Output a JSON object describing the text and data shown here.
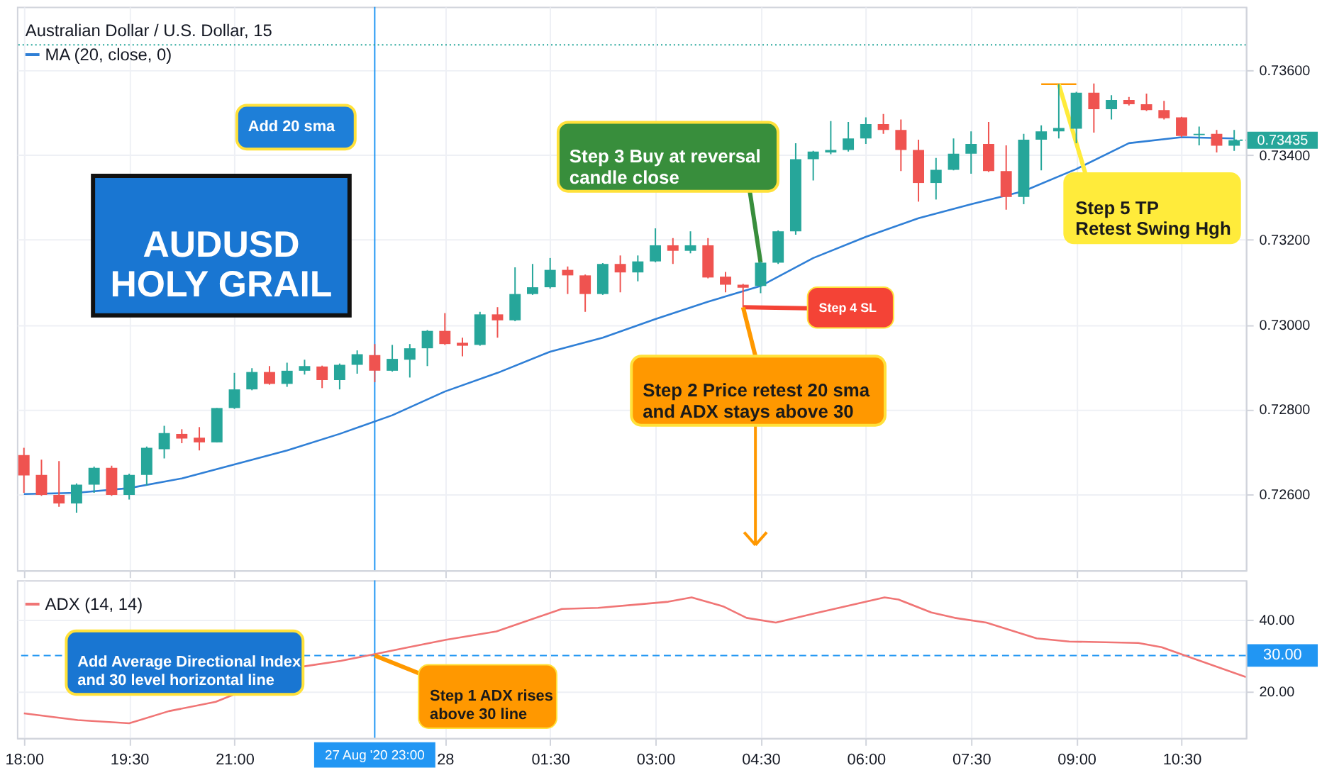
{
  "chart_data": [
    {
      "type": "candlestick",
      "title": "Australian Dollar / U.S. Dollar, 15",
      "legend": "top left",
      "grid": true,
      "tick_labels": "y",
      "x": [
        "2020-08-27T18:00",
        "2020-08-27T18:15",
        "2020-08-27T18:30",
        "2020-08-27T18:45",
        "2020-08-27T19:00",
        "2020-08-27T19:15",
        "2020-08-27T19:30",
        "2020-08-27T19:45",
        "2020-08-27T20:00",
        "2020-08-27T20:15",
        "2020-08-27T20:30",
        "2020-08-27T20:45",
        "2020-08-27T21:00",
        "2020-08-27T21:15",
        "2020-08-27T21:30",
        "2020-08-27T21:45",
        "2020-08-27T22:00",
        "2020-08-27T22:15",
        "2020-08-27T22:30",
        "2020-08-27T22:45",
        "2020-08-27T23:00",
        "2020-08-27T23:15",
        "2020-08-27T23:30",
        "2020-08-27T23:45",
        "2020-08-28T00:00",
        "2020-08-28T00:15",
        "2020-08-28T00:30",
        "2020-08-28T00:45",
        "2020-08-28T01:00",
        "2020-08-28T01:15",
        "2020-08-28T01:30",
        "2020-08-28T01:45",
        "2020-08-28T02:00",
        "2020-08-28T02:15",
        "2020-08-28T02:30",
        "2020-08-28T02:45",
        "2020-08-28T03:00",
        "2020-08-28T03:15",
        "2020-08-28T03:30",
        "2020-08-28T03:45",
        "2020-08-28T04:00",
        "2020-08-28T04:15",
        "2020-08-28T04:30",
        "2020-08-28T04:45",
        "2020-08-28T05:00",
        "2020-08-28T05:15",
        "2020-08-28T05:30",
        "2020-08-28T05:45",
        "2020-08-28T06:00",
        "2020-08-28T06:15",
        "2020-08-28T06:30",
        "2020-08-28T06:45",
        "2020-08-28T07:00",
        "2020-08-28T07:15",
        "2020-08-28T07:30",
        "2020-08-28T07:45",
        "2020-08-28T08:00",
        "2020-08-28T08:15",
        "2020-08-28T08:30",
        "2020-08-28T08:45",
        "2020-08-28T09:00",
        "2020-08-28T09:15",
        "2020-08-28T09:30",
        "2020-08-28T09:45",
        "2020-08-28T10:00",
        "2020-08-28T10:15",
        "2020-08-28T10:30",
        "2020-08-28T10:45",
        "2020-08-28T11:00",
        "2020-08-28T11:15"
      ],
      "ohlc": [
        [
          0.72692,
          0.72709,
          0.72603,
          0.72644
        ],
        [
          0.72645,
          0.72681,
          0.72596,
          0.72598
        ],
        [
          0.72598,
          0.72678,
          0.7257,
          0.72578
        ],
        [
          0.72578,
          0.72625,
          0.72556,
          0.72622
        ],
        [
          0.72622,
          0.72665,
          0.72603,
          0.72662
        ],
        [
          0.72662,
          0.72667,
          0.72596,
          0.72598
        ],
        [
          0.72598,
          0.72648,
          0.72587,
          0.72645
        ],
        [
          0.72645,
          0.72712,
          0.7262,
          0.72709
        ],
        [
          0.72706,
          0.72761,
          0.72684,
          0.72744
        ],
        [
          0.72742,
          0.72753,
          0.7272,
          0.72731
        ],
        [
          0.72733,
          0.72758,
          0.72703,
          0.72722
        ],
        [
          0.72722,
          0.72803,
          0.72722,
          0.72803
        ],
        [
          0.72803,
          0.72886,
          0.72801,
          0.72847
        ],
        [
          0.72847,
          0.72897,
          0.72845,
          0.72888
        ],
        [
          0.72888,
          0.72902,
          0.72858,
          0.7286
        ],
        [
          0.7286,
          0.7291,
          0.72853,
          0.72891
        ],
        [
          0.72891,
          0.72917,
          0.72882,
          0.72902
        ],
        [
          0.72901,
          0.72903,
          0.7285,
          0.72869
        ],
        [
          0.72869,
          0.72908,
          0.72847,
          0.72905
        ],
        [
          0.72905,
          0.72939,
          0.72884,
          0.7293
        ],
        [
          0.72928,
          0.72954,
          0.72864,
          0.72891
        ],
        [
          0.72891,
          0.72952,
          0.72889,
          0.72919
        ],
        [
          0.72917,
          0.72954,
          0.72875,
          0.72944
        ],
        [
          0.72944,
          0.72987,
          0.72902,
          0.72985
        ],
        [
          0.72985,
          0.73027,
          0.72952,
          0.72954
        ],
        [
          0.72957,
          0.72969,
          0.72925,
          0.7295
        ],
        [
          0.72952,
          0.7303,
          0.7295,
          0.73024
        ],
        [
          0.73024,
          0.73041,
          0.72969,
          0.7301
        ],
        [
          0.7301,
          0.73135,
          0.73008,
          0.73072
        ],
        [
          0.73072,
          0.73143,
          0.7307,
          0.73088
        ],
        [
          0.73088,
          0.73157,
          0.73085,
          0.73129
        ],
        [
          0.73129,
          0.73137,
          0.73072,
          0.73116
        ],
        [
          0.73116,
          0.73118,
          0.7303,
          0.73072
        ],
        [
          0.73072,
          0.73145,
          0.7307,
          0.73143
        ],
        [
          0.73143,
          0.73163,
          0.73076,
          0.73123
        ],
        [
          0.73123,
          0.73163,
          0.73102,
          0.73149
        ],
        [
          0.73149,
          0.73227,
          0.73147,
          0.73187
        ],
        [
          0.73187,
          0.73204,
          0.73143,
          0.73174
        ],
        [
          0.73174,
          0.7322,
          0.73168,
          0.73187
        ],
        [
          0.73187,
          0.73204,
          0.73109,
          0.73111
        ],
        [
          0.73113,
          0.73124,
          0.73076,
          0.73094
        ],
        [
          0.73094,
          0.73096,
          0.73041,
          0.73087
        ],
        [
          0.73091,
          0.73149,
          0.73074,
          0.73146
        ],
        [
          0.73146,
          0.73222,
          0.73143,
          0.7322
        ],
        [
          0.7322,
          0.73428,
          0.73212,
          0.7339
        ],
        [
          0.7339,
          0.7341,
          0.7334,
          0.73408
        ],
        [
          0.73406,
          0.7348,
          0.73402,
          0.73412
        ],
        [
          0.73412,
          0.73478,
          0.73408,
          0.73439
        ],
        [
          0.73439,
          0.73489,
          0.73426,
          0.73473
        ],
        [
          0.73473,
          0.73497,
          0.7345,
          0.73459
        ],
        [
          0.73459,
          0.73484,
          0.73362,
          0.73412
        ],
        [
          0.73412,
          0.73436,
          0.7329,
          0.73334
        ],
        [
          0.73334,
          0.73393,
          0.73295,
          0.73365
        ],
        [
          0.73365,
          0.73439,
          0.73364,
          0.73403
        ],
        [
          0.73403,
          0.73456,
          0.73356,
          0.73426
        ],
        [
          0.73426,
          0.73478,
          0.7336,
          0.73362
        ],
        [
          0.73362,
          0.73423,
          0.73271,
          0.73301
        ],
        [
          0.73301,
          0.7345,
          0.73284,
          0.73436
        ],
        [
          0.73436,
          0.7347,
          0.73364,
          0.73456
        ],
        [
          0.73456,
          0.73567,
          0.73439,
          0.73464
        ],
        [
          0.73462,
          0.73549,
          0.73428,
          0.73547
        ],
        [
          0.73547,
          0.73569,
          0.73453,
          0.73508
        ],
        [
          0.73508,
          0.73541,
          0.73484,
          0.7353
        ],
        [
          0.7353,
          0.73537,
          0.73517,
          0.7352
        ],
        [
          0.7352,
          0.73545,
          0.73504,
          0.73506
        ],
        [
          0.73506,
          0.73528,
          0.73484,
          0.73487
        ],
        [
          0.73489,
          0.7349,
          0.73442,
          0.73445
        ],
        [
          0.73447,
          0.73467,
          0.73423,
          0.7345
        ],
        [
          0.7345,
          0.73459,
          0.73406,
          0.73422
        ],
        [
          0.73422,
          0.73459,
          0.7341,
          0.73435
        ]
      ],
      "series": [
        {
          "name": "MA (20, close, 0)",
          "type": "line",
          "color": "#2f7fd6",
          "x": [
            "2020-08-27T18:00",
            "2020-08-27T18:45",
            "2020-08-27T19:30",
            "2020-08-27T20:15",
            "2020-08-27T21:00",
            "2020-08-27T21:45",
            "2020-08-27T22:30",
            "2020-08-27T23:15",
            "2020-08-28T00:00",
            "2020-08-28T00:45",
            "2020-08-28T01:30",
            "2020-08-28T02:15",
            "2020-08-28T03:00",
            "2020-08-28T03:45",
            "2020-08-28T04:30",
            "2020-08-28T05:15",
            "2020-08-28T06:00",
            "2020-08-28T06:45",
            "2020-08-28T07:30",
            "2020-08-28T08:15",
            "2020-08-28T09:00",
            "2020-08-28T09:45",
            "2020-08-28T10:30",
            "2020-08-28T11:15"
          ],
          "values": [
            0.726,
            0.72603,
            0.72614,
            0.72637,
            0.7267,
            0.72703,
            0.72742,
            0.72786,
            0.72842,
            0.72886,
            0.72936,
            0.72969,
            0.73013,
            0.73054,
            0.73091,
            0.73157,
            0.73207,
            0.73251,
            0.73284,
            0.73315,
            0.73367,
            0.73428,
            0.73442,
            0.73439
          ]
        },
        {
          "type": "line",
          "color": "#ff9800",
          "x": [
            "2020-08-28T08:30",
            "2020-08-28T09:00"
          ],
          "values": [
            0.73567,
            0.73567
          ]
        }
      ],
      "xlim": [
        "2020-08-27T17:54",
        "2020-08-28T11:25"
      ],
      "xticks": [
        {
          "value": "2020-08-27T18:00",
          "label": null
        },
        {
          "value": "2020-08-27T19:30",
          "label": null
        },
        {
          "value": "2020-08-27T21:00",
          "label": null
        },
        {
          "value": "2020-08-28T00:00",
          "label": null
        },
        {
          "value": "2020-08-28T01:30",
          "label": null
        },
        {
          "value": "2020-08-28T03:00",
          "label": null
        },
        {
          "value": "2020-08-28T04:30",
          "label": null
        },
        {
          "value": "2020-08-28T06:00",
          "label": null
        },
        {
          "value": "2020-08-28T07:30",
          "label": null
        },
        {
          "value": "2020-08-28T09:00",
          "label": null
        },
        {
          "value": "2020-08-28T10:30",
          "label": null
        }
      ],
      "ylim": [
        0.7242,
        0.7375
      ],
      "yticks": [
        {
          "value": 0.726,
          "label": "0.72600"
        },
        {
          "value": 0.728,
          "label": "0.72800"
        },
        {
          "value": 0.73,
          "label": "0.73000"
        },
        {
          "value": 0.732,
          "label": "0.73200"
        },
        {
          "value": 0.734,
          "label": "0.73400"
        },
        {
          "value": 0.736,
          "label": "0.73600"
        }
      ],
      "ref_lines": [
        {
          "axis": "x",
          "value": "2020-08-27T23:00",
          "color": "#2196f3",
          "line_style": "solid"
        },
        {
          "axis": "y",
          "value": 0.7366,
          "color": "#26a69a",
          "line_style": "dotted"
        }
      ],
      "annotations": [
        "Add 20 sma",
        "AUDUSD\nHOLY GRAIL",
        {
          "text": "Step 3 Buy at reversal\ncandle close",
          "x": "2020-08-28T04:30",
          "y": 0.73146
        },
        {
          "text": "Step 4 SL",
          "x": "2020-08-28T04:15",
          "y": 0.73041
        },
        {
          "text": "Step 2 Price retest 20 sma\nand ADX stays above 30",
          "x": "2020-08-28T04:15",
          "y": 0.73041
        },
        {
          "text": "Step 5 TP\nRetest Swing Hgh",
          "x": "2020-08-28T08:45",
          "y": 0.73567
        },
        {
          "text": "0.73435",
          "x": "2020-08-28T11:15",
          "y": 0.73435
        }
      ]
    },
    {
      "type": "line",
      "legend": "top left",
      "grid": true,
      "series": [
        {
          "name": "ADX (14, 14)",
          "color": "#f07575",
          "x": [
            "2020-08-27T18:00",
            "2020-08-27T18:46",
            "2020-08-27T19:30",
            "2020-08-27T20:04",
            "2020-08-27T20:44",
            "2020-08-27T22:00",
            "2020-08-27T22:31",
            "2020-08-27T23:00",
            "2020-08-27T23:29",
            "2020-08-28T00:01",
            "2020-08-28T00:44",
            "2020-08-28T01:40",
            "2020-08-28T02:11",
            "2020-08-28T02:47",
            "2020-08-28T03:11",
            "2020-08-28T03:31",
            "2020-08-28T03:58",
            "2020-08-28T04:18",
            "2020-08-28T04:43",
            "2020-08-28T05:17",
            "2020-08-28T06:16",
            "2020-08-28T06:28",
            "2020-08-28T06:56",
            "2020-08-28T07:16",
            "2020-08-28T07:43",
            "2020-08-28T08:26",
            "2020-08-28T08:54",
            "2020-08-28T09:53",
            "2020-08-28T10:13",
            "2020-08-28T10:33",
            "2020-08-28T11:25"
          ],
          "values": [
            13.9,
            12,
            11.1,
            14.5,
            17.1,
            27,
            28.5,
            30.4,
            32.3,
            34.4,
            36.7,
            43,
            43.3,
            44.3,
            45,
            46.2,
            43.7,
            40.5,
            39.2,
            41.8,
            46.2,
            45.6,
            42,
            40.5,
            39.2,
            34.8,
            33.9,
            33.5,
            32.3,
            30,
            24
          ]
        }
      ],
      "xlim": [
        "2020-08-27T17:54",
        "2020-08-28T11:25"
      ],
      "xticks": [
        {
          "value": "2020-08-27T18:00",
          "label": "18:00"
        },
        {
          "value": "2020-08-27T19:30",
          "label": "19:30"
        },
        {
          "value": "2020-08-27T21:00",
          "label": "21:00"
        },
        {
          "value": "2020-08-28T00:00",
          "label": "28"
        },
        {
          "value": "2020-08-28T01:30",
          "label": "01:30"
        },
        {
          "value": "2020-08-28T03:00",
          "label": "03:00"
        },
        {
          "value": "2020-08-28T04:30",
          "label": "04:30"
        },
        {
          "value": "2020-08-28T06:00",
          "label": "06:00"
        },
        {
          "value": "2020-08-28T07:30",
          "label": "07:30"
        },
        {
          "value": "2020-08-28T09:00",
          "label": "09:00"
        },
        {
          "value": "2020-08-28T10:30",
          "label": "10:30"
        }
      ],
      "ylim": [
        7,
        51
      ],
      "yticks": [
        {
          "value": 20,
          "label": "20.00"
        },
        {
          "value": 40,
          "label": "40.00"
        }
      ],
      "ref_lines": [
        {
          "axis": "y",
          "value": 30,
          "label": "30.00",
          "color": "#2196f3",
          "line_style": "dashed"
        },
        {
          "axis": "x",
          "value": "2020-08-27T23:00",
          "label": "27 Aug '20 23:00",
          "color": "#2196f3",
          "line_style": "solid"
        }
      ],
      "annotations": [
        "Add Average Directional Index\nand 30 level horizontal line",
        {
          "text": "Step 1 ADX rises\nabove 30 line",
          "x": "2020-08-27T23:00",
          "y": 30
        }
      ]
    }
  ]
}
